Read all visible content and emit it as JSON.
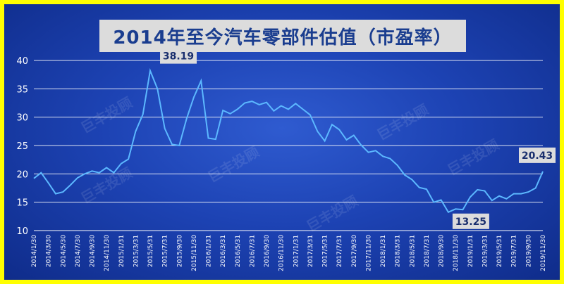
{
  "chart_data": {
    "type": "line",
    "title": "2014年至今汽车零部件估值（市盈率）",
    "ylim": [
      10,
      40
    ],
    "yticks": [
      10,
      15,
      20,
      25,
      30,
      35,
      40
    ],
    "grid": true,
    "colors": {
      "line": "#5cb8ff",
      "background": "#1d43b4",
      "border": "#ffff00",
      "label_box": "#dcdcdc"
    },
    "xticks": [
      "2014/1/30",
      "2014/3/30",
      "2014/5/30",
      "2014/7/30",
      "2014/9/30",
      "2014/11/30",
      "2015/1/31",
      "2015/3/31",
      "2015/5/31",
      "2015/7/31",
      "2015/9/30",
      "2015/11/30",
      "2016/1/31",
      "2016/3/31",
      "2016/5/31",
      "2016/7/31",
      "2016/9/30",
      "2016/11/30",
      "2017/1/31",
      "2017/3/31",
      "2017/5/31",
      "2017/7/31",
      "2017/9/30",
      "2017/11/30",
      "2018/1/31",
      "2018/3/31",
      "2018/5/31",
      "2018/7/31",
      "2018/9/30",
      "2018/11/30",
      "2019/1/31",
      "2019/3/31",
      "2019/5/31",
      "2019/7/31",
      "2019/9/30",
      "2019/11/30"
    ],
    "values": [
      19.2,
      20.2,
      18.4,
      16.5,
      16.8,
      18.0,
      19.3,
      20.0,
      20.5,
      20.2,
      21.1,
      20.2,
      21.8,
      22.6,
      27.5,
      30.5,
      38.19,
      35.0,
      28.0,
      25.2,
      25.0,
      29.7,
      33.5,
      36.4,
      26.3,
      26.1,
      31.2,
      30.6,
      31.4,
      32.5,
      32.8,
      32.2,
      32.6,
      31.1,
      32.0,
      31.4,
      32.4,
      31.4,
      30.4,
      27.5,
      25.8,
      28.7,
      27.8,
      26.0,
      26.8,
      25.1,
      23.8,
      24.1,
      23.1,
      22.7,
      21.5,
      19.8,
      19.0,
      17.6,
      17.3,
      15.0,
      15.4,
      13.25,
      13.8,
      13.7,
      15.9,
      17.2,
      17.0,
      15.3,
      16.1,
      15.6,
      16.5,
      16.5,
      16.8,
      17.5,
      20.43
    ],
    "annotations": [
      {
        "label": "38.19",
        "index": 16
      },
      {
        "label": "13.25",
        "index": 57
      },
      {
        "label": "20.43",
        "index": 70
      }
    ],
    "watermark": "巨丰投顾"
  }
}
